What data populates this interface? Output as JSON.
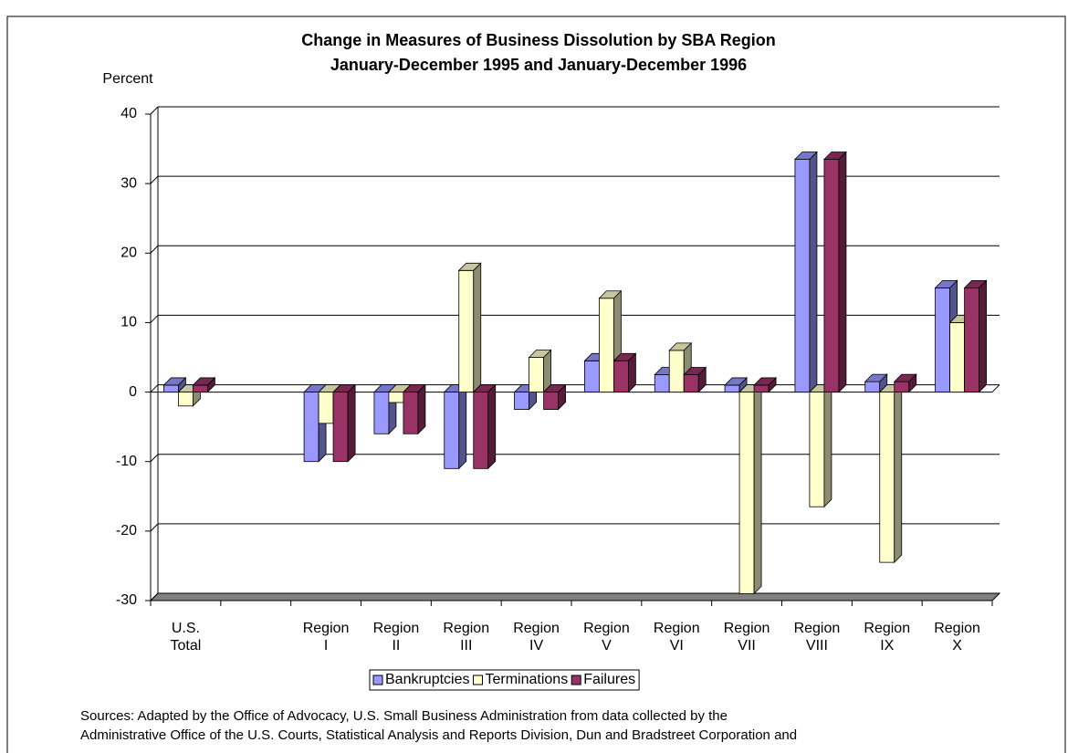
{
  "chart_data": {
    "type": "bar3d",
    "title": [
      "Change in Measures of Business Dissolution by SBA Region",
      "January-December 1995 and January-December 1996"
    ],
    "y_axis_label": "Percent",
    "categories": [
      [
        "U.S.",
        "Total"
      ],
      null,
      [
        "Region",
        "I"
      ],
      [
        "Region",
        "II"
      ],
      [
        "Region",
        "III"
      ],
      [
        "Region",
        "IV"
      ],
      [
        "Region",
        "V"
      ],
      [
        "Region",
        "VI"
      ],
      [
        "Region",
        "VII"
      ],
      [
        "Region",
        "VIII"
      ],
      [
        "Region",
        "IX"
      ],
      [
        "Region",
        "X"
      ]
    ],
    "series": [
      {
        "name": "Bankruptcies",
        "color": "#9999ff",
        "values": [
          1,
          null,
          -10,
          -6,
          -11,
          -2.5,
          4.5,
          2.5,
          1,
          33.5,
          1.5,
          15
        ]
      },
      {
        "name": "Terminations",
        "color": "#ffffcc",
        "values": [
          -2,
          null,
          -4.5,
          -1.5,
          17.5,
          5,
          13.5,
          6,
          -29,
          -16.5,
          -24.5,
          10
        ]
      },
      {
        "name": "Failures",
        "color": "#993366",
        "values": [
          1,
          null,
          -10,
          -6,
          -11,
          -2.5,
          4.5,
          2.5,
          1,
          33.5,
          1.5,
          15
        ]
      }
    ],
    "ylim": [
      -30,
      40
    ],
    "yticks": [
      -30,
      -20,
      -10,
      0,
      10,
      20,
      30,
      40
    ],
    "grid": true,
    "legend": "bottom",
    "notes": [
      "Sources:  Adapted by the Office of Advocacy, U.S. Small Business Administration from data collected by the",
      "Administrative Office of the U.S. Courts, Statistical Analysis and Reports Division, Dun and Bradstreet Corporation and"
    ]
  }
}
